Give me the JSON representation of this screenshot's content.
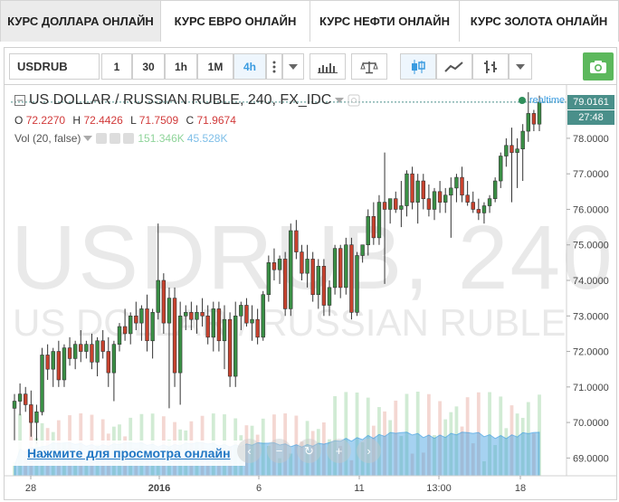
{
  "tabs": [
    {
      "label": "КУРС ДОЛЛАРА ОНЛАЙН",
      "active": true
    },
    {
      "label": "КУРС ЕВРО ОНЛАЙН",
      "active": false
    },
    {
      "label": "КУРС НЕФТИ ОНЛАЙН",
      "active": false
    },
    {
      "label": "КУРС ЗОЛОТА ОНЛАЙН",
      "active": false
    }
  ],
  "toolbar": {
    "symbol": "USDRUB",
    "intervals": [
      "1",
      "30",
      "1h",
      "1M",
      "4h"
    ],
    "active_interval": "4h",
    "icons": [
      "more-vertical-icon",
      "bar-chart-icon",
      "scales-icon",
      "candles-icon",
      "area-chart-icon",
      "bars-icon",
      "chevron-down-icon",
      "camera-icon"
    ]
  },
  "legend": {
    "title": "US DOLLAR / RUSSIAN RUBLE, 240, FX_IDC",
    "o_label": "O",
    "o": "72.2270",
    "h_label": "H",
    "h": "72.4426",
    "l_label": "L",
    "l": "71.7509",
    "c_label": "C",
    "c": "71.9674",
    "vol_label": "Vol (20, false)",
    "vol_1": "151.346K",
    "vol_2": "45.528K",
    "realtime": "realtime"
  },
  "watermark": {
    "line1": "USDRUB, 240",
    "line2": "US DOLLAR / RUSSIAN RUBLE"
  },
  "price_tags": {
    "last": "79.0161",
    "countdown": "27:48"
  },
  "overlay": {
    "link": "Нажмите для просмотра онлайн"
  },
  "colors": {
    "up": "#3a8f45",
    "down": "#c8422e",
    "accent": "#3a9be0",
    "last_price_bg": "#4a8f8a",
    "countdown_bg": "#4a8f8a",
    "camera_bg": "#5cb85c"
  },
  "chart_data": {
    "type": "candlestick",
    "y_axis": {
      "range": [
        68.5,
        79.5
      ],
      "ticks": [
        "69.0000",
        "70.0000",
        "71.0000",
        "72.0000",
        "73.0000",
        "74.0000",
        "75.0000",
        "76.0000",
        "77.0000",
        "78.0000"
      ]
    },
    "x_labels": [
      "28",
      "2016",
      "6",
      "11",
      "13:00",
      "18"
    ],
    "candles": [
      {
        "o": 70.4,
        "h": 70.8,
        "l": 69.5,
        "c": 70.6
      },
      {
        "o": 70.6,
        "h": 71.1,
        "l": 70.2,
        "c": 70.8
      },
      {
        "o": 70.8,
        "h": 71.0,
        "l": 70.3,
        "c": 70.5
      },
      {
        "o": 70.5,
        "h": 70.9,
        "l": 69.6,
        "c": 70.0
      },
      {
        "o": 70.0,
        "h": 70.5,
        "l": 69.4,
        "c": 70.3
      },
      {
        "o": 70.3,
        "h": 72.1,
        "l": 70.2,
        "c": 71.9
      },
      {
        "o": 71.9,
        "h": 72.2,
        "l": 71.2,
        "c": 71.5
      },
      {
        "o": 71.5,
        "h": 72.1,
        "l": 71.0,
        "c": 72.0
      },
      {
        "o": 72.0,
        "h": 72.3,
        "l": 71.0,
        "c": 71.2
      },
      {
        "o": 71.2,
        "h": 72.2,
        "l": 71.0,
        "c": 72.1
      },
      {
        "o": 72.1,
        "h": 72.4,
        "l": 71.6,
        "c": 71.8
      },
      {
        "o": 71.8,
        "h": 72.3,
        "l": 71.5,
        "c": 72.2
      },
      {
        "o": 72.2,
        "h": 72.6,
        "l": 71.7,
        "c": 72.0
      },
      {
        "o": 72.0,
        "h": 72.3,
        "l": 71.8,
        "c": 72.2
      },
      {
        "o": 72.2,
        "h": 72.5,
        "l": 71.5,
        "c": 71.7
      },
      {
        "o": 71.7,
        "h": 72.4,
        "l": 71.3,
        "c": 72.3
      },
      {
        "o": 72.3,
        "h": 72.6,
        "l": 71.8,
        "c": 72.0
      },
      {
        "o": 72.0,
        "h": 72.4,
        "l": 71.0,
        "c": 71.4
      },
      {
        "o": 71.4,
        "h": 72.3,
        "l": 70.6,
        "c": 72.2
      },
      {
        "o": 72.2,
        "h": 72.8,
        "l": 72.0,
        "c": 72.7
      },
      {
        "o": 72.7,
        "h": 73.2,
        "l": 72.3,
        "c": 72.5
      },
      {
        "o": 72.5,
        "h": 73.1,
        "l": 72.2,
        "c": 73.0
      },
      {
        "o": 73.0,
        "h": 73.4,
        "l": 72.6,
        "c": 72.8
      },
      {
        "o": 72.8,
        "h": 73.3,
        "l": 72.3,
        "c": 73.2
      },
      {
        "o": 73.2,
        "h": 73.6,
        "l": 72.0,
        "c": 72.3
      },
      {
        "o": 72.3,
        "h": 73.2,
        "l": 71.8,
        "c": 73.1
      },
      {
        "o": 73.1,
        "h": 75.6,
        "l": 72.9,
        "c": 74.0
      },
      {
        "o": 74.0,
        "h": 74.2,
        "l": 72.5,
        "c": 72.8
      },
      {
        "o": 72.8,
        "h": 73.8,
        "l": 70.4,
        "c": 73.5
      },
      {
        "o": 73.5,
        "h": 73.8,
        "l": 71.0,
        "c": 71.4
      },
      {
        "o": 71.4,
        "h": 73.4,
        "l": 70.5,
        "c": 73.0
      },
      {
        "o": 73.0,
        "h": 73.3,
        "l": 72.6,
        "c": 73.1
      },
      {
        "o": 73.1,
        "h": 73.4,
        "l": 72.6,
        "c": 72.9
      },
      {
        "o": 72.9,
        "h": 73.3,
        "l": 72.5,
        "c": 73.1
      },
      {
        "o": 73.1,
        "h": 73.5,
        "l": 72.7,
        "c": 73.0
      },
      {
        "o": 73.0,
        "h": 73.3,
        "l": 72.2,
        "c": 72.4
      },
      {
        "o": 72.4,
        "h": 73.4,
        "l": 72.0,
        "c": 73.2
      },
      {
        "o": 73.2,
        "h": 73.4,
        "l": 72.0,
        "c": 72.3
      },
      {
        "o": 72.3,
        "h": 73.3,
        "l": 71.5,
        "c": 72.9
      },
      {
        "o": 72.9,
        "h": 73.1,
        "l": 71.0,
        "c": 71.3
      },
      {
        "o": 71.3,
        "h": 73.4,
        "l": 71.0,
        "c": 73.0
      },
      {
        "o": 73.0,
        "h": 73.4,
        "l": 72.6,
        "c": 73.3
      },
      {
        "o": 73.3,
        "h": 73.5,
        "l": 72.7,
        "c": 72.8
      },
      {
        "o": 72.8,
        "h": 73.3,
        "l": 72.3,
        "c": 72.9
      },
      {
        "o": 72.9,
        "h": 73.2,
        "l": 72.2,
        "c": 72.4
      },
      {
        "o": 72.4,
        "h": 73.7,
        "l": 72.3,
        "c": 73.6
      },
      {
        "o": 73.6,
        "h": 74.7,
        "l": 73.4,
        "c": 74.5
      },
      {
        "o": 74.5,
        "h": 74.9,
        "l": 74.0,
        "c": 74.3
      },
      {
        "o": 74.3,
        "h": 74.7,
        "l": 73.9,
        "c": 74.6
      },
      {
        "o": 74.6,
        "h": 74.8,
        "l": 73.0,
        "c": 73.2
      },
      {
        "o": 73.2,
        "h": 75.6,
        "l": 73.0,
        "c": 75.4
      },
      {
        "o": 75.4,
        "h": 75.7,
        "l": 74.6,
        "c": 74.8
      },
      {
        "o": 74.8,
        "h": 75.0,
        "l": 74.0,
        "c": 74.2
      },
      {
        "o": 74.2,
        "h": 75.0,
        "l": 73.8,
        "c": 74.6
      },
      {
        "o": 74.6,
        "h": 74.8,
        "l": 73.4,
        "c": 73.6
      },
      {
        "o": 73.6,
        "h": 74.6,
        "l": 73.2,
        "c": 74.4
      },
      {
        "o": 74.4,
        "h": 74.6,
        "l": 73.0,
        "c": 73.3
      },
      {
        "o": 73.3,
        "h": 74.0,
        "l": 73.0,
        "c": 73.8
      },
      {
        "o": 73.8,
        "h": 75.0,
        "l": 73.6,
        "c": 74.9
      },
      {
        "o": 74.9,
        "h": 75.0,
        "l": 73.5,
        "c": 73.8
      },
      {
        "o": 73.8,
        "h": 75.2,
        "l": 73.6,
        "c": 75.0
      },
      {
        "o": 75.0,
        "h": 75.2,
        "l": 72.9,
        "c": 73.1
      },
      {
        "o": 73.1,
        "h": 74.8,
        "l": 73.0,
        "c": 74.7
      },
      {
        "o": 74.7,
        "h": 75.0,
        "l": 74.5,
        "c": 75.0
      },
      {
        "o": 75.0,
        "h": 76.0,
        "l": 74.7,
        "c": 75.8
      },
      {
        "o": 75.8,
        "h": 76.2,
        "l": 75.0,
        "c": 75.2
      },
      {
        "o": 75.2,
        "h": 76.4,
        "l": 75.0,
        "c": 76.2
      },
      {
        "o": 76.2,
        "h": 77.6,
        "l": 73.9,
        "c": 76.0
      },
      {
        "o": 76.0,
        "h": 76.3,
        "l": 75.6,
        "c": 76.3
      },
      {
        "o": 76.3,
        "h": 76.5,
        "l": 75.9,
        "c": 76.0
      },
      {
        "o": 76.0,
        "h": 76.8,
        "l": 75.5,
        "c": 76.1
      },
      {
        "o": 76.1,
        "h": 77.1,
        "l": 75.8,
        "c": 77.0
      },
      {
        "o": 77.0,
        "h": 77.2,
        "l": 76.0,
        "c": 76.2
      },
      {
        "o": 76.2,
        "h": 77.0,
        "l": 75.6,
        "c": 76.8
      },
      {
        "o": 76.8,
        "h": 77.0,
        "l": 76.0,
        "c": 76.3
      },
      {
        "o": 76.3,
        "h": 76.7,
        "l": 75.8,
        "c": 76.0
      },
      {
        "o": 76.0,
        "h": 76.6,
        "l": 75.7,
        "c": 76.5
      },
      {
        "o": 76.5,
        "h": 76.8,
        "l": 75.9,
        "c": 76.2
      },
      {
        "o": 76.2,
        "h": 76.6,
        "l": 75.9,
        "c": 76.4
      },
      {
        "o": 76.4,
        "h": 76.9,
        "l": 75.2,
        "c": 76.6
      },
      {
        "o": 76.6,
        "h": 77.0,
        "l": 76.2,
        "c": 76.9
      },
      {
        "o": 76.9,
        "h": 77.2,
        "l": 76.2,
        "c": 76.4
      },
      {
        "o": 76.4,
        "h": 76.8,
        "l": 76.1,
        "c": 76.2
      },
      {
        "o": 76.2,
        "h": 76.5,
        "l": 75.9,
        "c": 76.0
      },
      {
        "o": 76.0,
        "h": 76.3,
        "l": 75.7,
        "c": 75.9
      },
      {
        "o": 75.9,
        "h": 76.2,
        "l": 75.6,
        "c": 76.1
      },
      {
        "o": 76.1,
        "h": 76.4,
        "l": 75.9,
        "c": 76.3
      },
      {
        "o": 76.3,
        "h": 76.9,
        "l": 76.2,
        "c": 76.8
      },
      {
        "o": 76.8,
        "h": 77.6,
        "l": 76.6,
        "c": 77.5
      },
      {
        "o": 77.5,
        "h": 78.0,
        "l": 77.2,
        "c": 77.8
      },
      {
        "o": 77.8,
        "h": 78.3,
        "l": 76.2,
        "c": 77.6
      },
      {
        "o": 77.6,
        "h": 78.0,
        "l": 76.6,
        "c": 77.7
      },
      {
        "o": 77.7,
        "h": 78.4,
        "l": 76.8,
        "c": 78.2
      },
      {
        "o": 78.2,
        "h": 79.3,
        "l": 77.9,
        "c": 78.7
      },
      {
        "o": 78.7,
        "h": 78.8,
        "l": 78.2,
        "c": 78.4
      },
      {
        "o": 78.4,
        "h": 79.2,
        "l": 78.2,
        "c": 79.02
      }
    ]
  }
}
